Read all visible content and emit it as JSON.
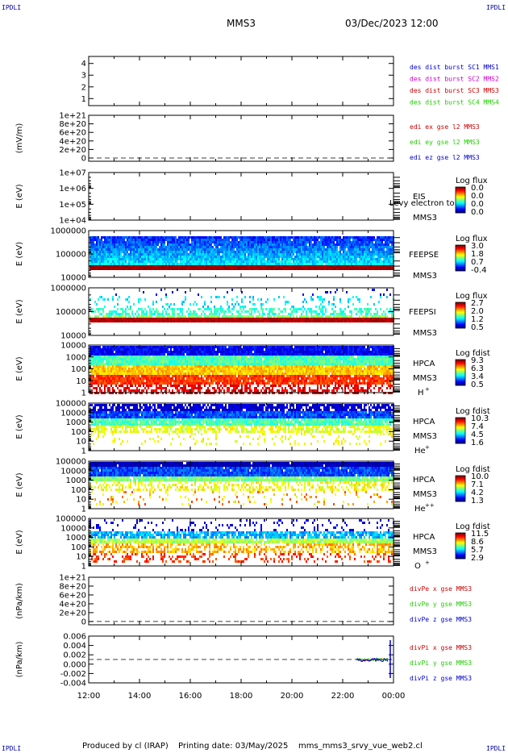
{
  "header": {
    "corner_tl": "IPDLI",
    "corner_tr": "IPDLI",
    "corner_bl": "IPDLI",
    "corner_br": "IPDLI",
    "mission": "MMS3",
    "datetime": "03/Dec/2023 12:00"
  },
  "footer": {
    "produced": "Produced by cl (IRAP)",
    "printed": "Printing date: 03/May/2025",
    "script": "mms_mms3_srvy_vue_web2.cl"
  },
  "colors": {
    "red": "#cc0000",
    "magenta": "#cc00cc",
    "green": "#22cc00",
    "blue": "#0000cc",
    "dashes": "#000000"
  },
  "chart_data": [
    {
      "id": "burst",
      "type": "line",
      "ylabel": "",
      "yticks": [
        "4",
        "3",
        "2",
        "1"
      ],
      "legend": [
        {
          "text": "des dist burst SC1 MMS1",
          "color": "#0000cc"
        },
        {
          "text": "des dist burst SC2 MMS2",
          "color": "#cc00cc"
        },
        {
          "text": "des dist burst SC3 MMS3",
          "color": "#cc0000"
        },
        {
          "text": "des dist burst SC4 MMS4",
          "color": "#22cc00"
        }
      ]
    },
    {
      "id": "edi",
      "type": "line",
      "ylabel": "(mV/m)",
      "yticks": [
        "1e+21",
        "8e+20",
        "6e+20",
        "4e+20",
        "2e+20",
        "0"
      ],
      "legend": [
        {
          "text": "edi ex gse l2 MMS3",
          "color": "#cc0000"
        },
        {
          "text": "edi ey gse l2 MMS3",
          "color": "#22cc00"
        },
        {
          "text": "edi ez gse l2 MMS3",
          "color": "#0000cc"
        }
      ]
    },
    {
      "id": "eis",
      "type": "heatmap",
      "ylabel": "E (eV)",
      "yticks": [
        "1e+07",
        "1e+06",
        "1e+05",
        "1e+04"
      ],
      "instrument": [
        "EIS",
        "MMS3"
      ],
      "overlay": "Levy electron to",
      "cbar_title": "Log flux",
      "cbar_ticks": [
        "0.0",
        "0.0",
        "0.0",
        "0.0"
      ]
    },
    {
      "id": "feepse",
      "type": "heatmap",
      "ylabel": "E (eV)",
      "yticks": [
        "1000000",
        "100000",
        "10000"
      ],
      "instrument": [
        "FEEPSE",
        "MMS3"
      ],
      "cbar_title": "Log flux",
      "cbar_ticks": [
        "3.0",
        "1.8",
        "0.7",
        "-0.4"
      ]
    },
    {
      "id": "feepsi",
      "type": "heatmap",
      "ylabel": "E (eV)",
      "yticks": [
        "1000000",
        "100000",
        "10000"
      ],
      "instrument": [
        "FEEPSI",
        "MMS3"
      ],
      "cbar_title": "Log flux",
      "cbar_ticks": [
        "2.7",
        "2.0",
        "1.2",
        "0.5"
      ]
    },
    {
      "id": "hpca_h",
      "type": "heatmap",
      "ylabel": "E (eV)",
      "yticks": [
        "10000",
        "1000",
        "100",
        "10",
        "1"
      ],
      "instrument": [
        "HPCA",
        "MMS3"
      ],
      "species": "H",
      "charge": "+",
      "cbar_title": "Log fdist",
      "cbar_ticks": [
        "9.3",
        "6.3",
        "3.4",
        "0.5"
      ]
    },
    {
      "id": "hpca_he",
      "type": "heatmap",
      "ylabel": "E (eV)",
      "yticks": [
        "100000",
        "10000",
        "1000",
        "100",
        "10",
        "1"
      ],
      "instrument": [
        "HPCA",
        "MMS3"
      ],
      "species": "He",
      "charge": "+",
      "cbar_title": "Log fdist",
      "cbar_ticks": [
        "10.3",
        "7.4",
        "4.5",
        "1.6"
      ]
    },
    {
      "id": "hpca_hepp",
      "type": "heatmap",
      "ylabel": "E (eV)",
      "yticks": [
        "100000",
        "10000",
        "1000",
        "100",
        "10",
        "1"
      ],
      "instrument": [
        "HPCA",
        "MMS3"
      ],
      "species": "He",
      "charge": "++",
      "cbar_title": "Log fdist",
      "cbar_ticks": [
        "10.0",
        "7.1",
        "4.2",
        "1.3"
      ]
    },
    {
      "id": "hpca_o",
      "type": "heatmap",
      "ylabel": "E (eV)",
      "yticks": [
        "100000",
        "10000",
        "1000",
        "100",
        "10",
        "1"
      ],
      "instrument": [
        "HPCA",
        "MMS3"
      ],
      "species": "O",
      "charge": "+",
      "cbar_title": "Log fdist",
      "cbar_ticks": [
        "11.5",
        "8.6",
        "5.7",
        "2.9"
      ]
    },
    {
      "id": "divpe",
      "type": "line",
      "ylabel": "(nPa/km)",
      "yticks": [
        "1e+21",
        "8e+20",
        "6e+20",
        "4e+20",
        "2e+20",
        "0"
      ],
      "legend": [
        {
          "text": "divPe x gse MMS3",
          "color": "#cc0000"
        },
        {
          "text": "divPe y gse MMS3",
          "color": "#22cc00"
        },
        {
          "text": "divPe z gse MMS3",
          "color": "#0000cc"
        }
      ]
    },
    {
      "id": "divpi",
      "type": "line",
      "ylabel": "(nPa/km)",
      "yticks": [
        "0.006",
        "0.004",
        "0.002",
        "0.000",
        "-0.002",
        "-0.004"
      ],
      "legend": [
        {
          "text": "divPi x gse MMS3",
          "color": "#cc0000"
        },
        {
          "text": "divPi y gse MMS3",
          "color": "#22cc00"
        },
        {
          "text": "divPi z gse MMS3",
          "color": "#0000cc"
        }
      ]
    }
  ],
  "time_axis": [
    "12:00",
    "14:00",
    "16:00",
    "18:00",
    "20:00",
    "22:00",
    "00:00"
  ]
}
